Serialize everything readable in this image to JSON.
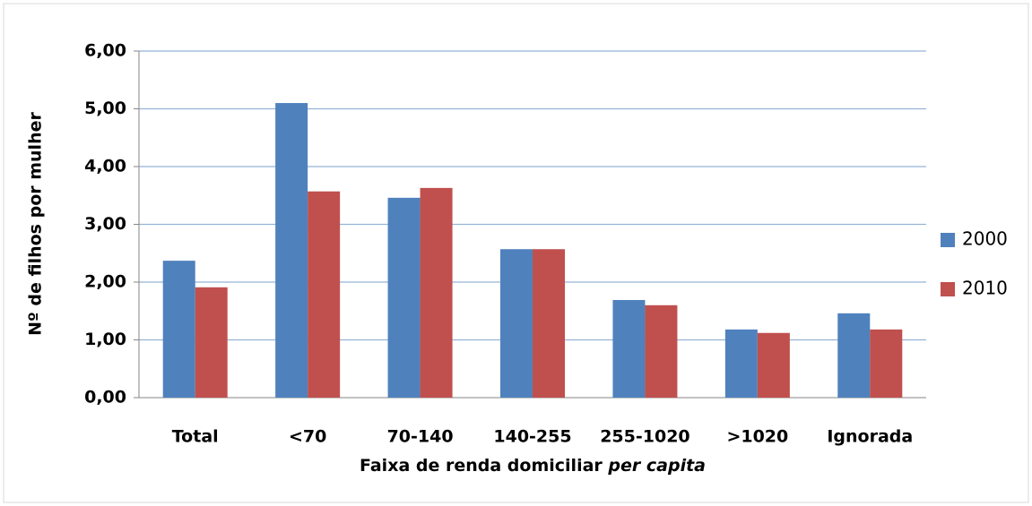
{
  "chart_data": {
    "type": "bar",
    "y_label": "Nº de filhos por mulher",
    "x_label": "Faixa de renda domiciliar",
    "x_label_italic": "per capita",
    "categories": [
      "Total",
      "<70",
      "70-140",
      "140-255",
      "255-1020",
      ">1020",
      "Ignorada"
    ],
    "series": [
      {
        "name": "2000",
        "color": "#4f81bd",
        "values": [
          2.37,
          5.1,
          3.46,
          2.57,
          1.69,
          1.18,
          1.46
        ]
      },
      {
        "name": "2010",
        "color": "#c0504d",
        "values": [
          1.91,
          3.57,
          3.63,
          2.57,
          1.6,
          1.12,
          1.18
        ]
      }
    ],
    "ylim": [
      0,
      6
    ],
    "yticks": [
      {
        "value": 0,
        "label": "0,00"
      },
      {
        "value": 1,
        "label": "1,00"
      },
      {
        "value": 2,
        "label": "2,00"
      },
      {
        "value": 3,
        "label": "3,00"
      },
      {
        "value": 4,
        "label": "4,00"
      },
      {
        "value": 5,
        "label": "5,00"
      },
      {
        "value": 6,
        "label": "6,00"
      }
    ],
    "grid": true,
    "legend": "right"
  }
}
